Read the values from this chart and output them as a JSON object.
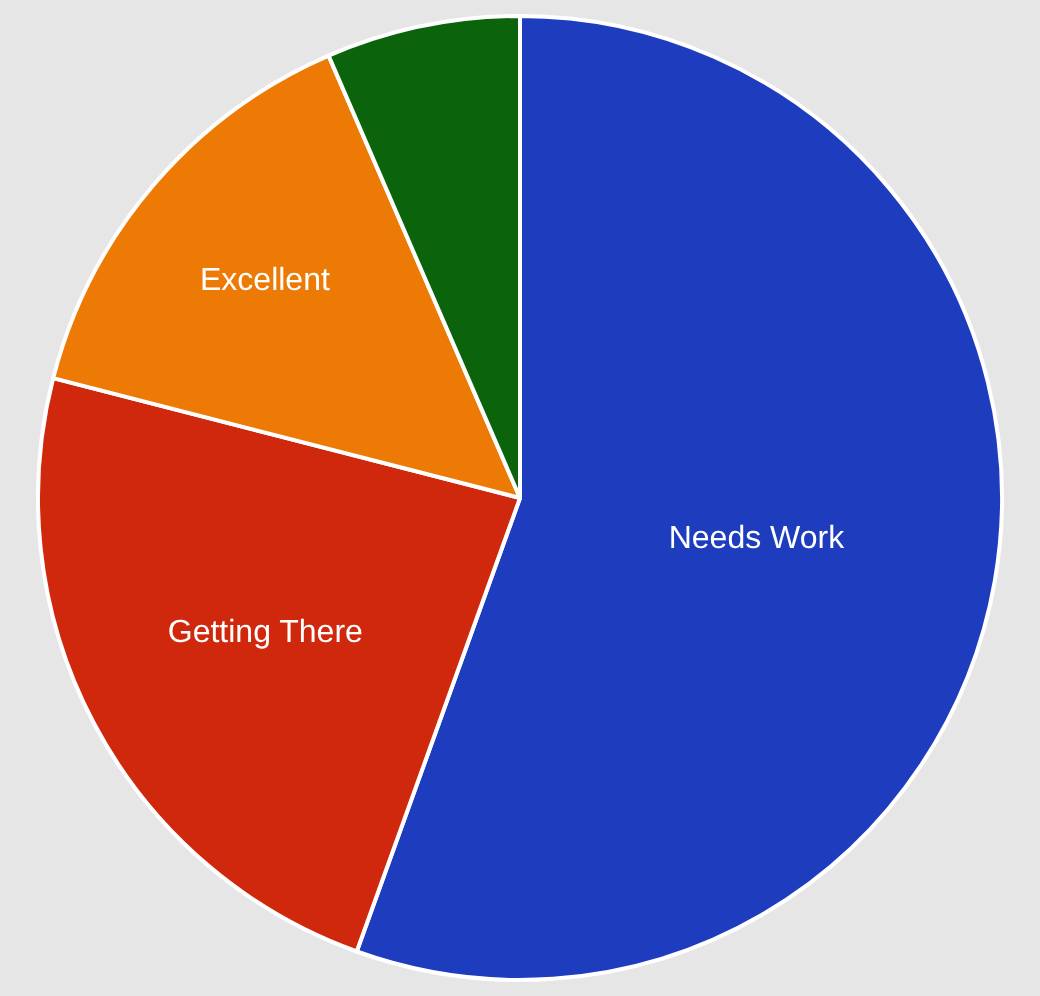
{
  "chart_data": {
    "type": "pie",
    "categories": [
      "Needs Work",
      "Getting There",
      "Excellent",
      null
    ],
    "values": [
      55.5,
      23.5,
      14.5,
      6.5
    ],
    "colors": [
      "#1e3cbe",
      "#d0280c",
      "#ee7a06",
      "#0b640b"
    ],
    "legend": false
  }
}
